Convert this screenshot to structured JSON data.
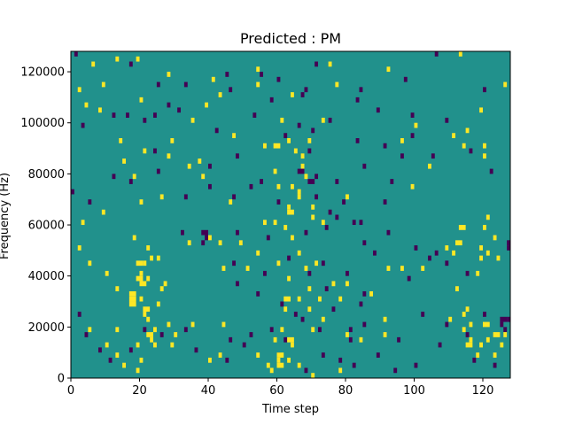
{
  "chart_data": {
    "type": "heatmap",
    "title": "Predicted : PM",
    "xlabel": "Time step",
    "ylabel": "Frequency (Hz)",
    "xlim": [
      0,
      128
    ],
    "ylim": [
      0,
      128000
    ],
    "x_ticks": [
      0,
      20,
      40,
      60,
      80,
      100,
      120
    ],
    "y_ticks": [
      0,
      20000,
      40000,
      60000,
      80000,
      100000,
      120000
    ],
    "y_tick_labels": [
      "0",
      "20000",
      "40000",
      "60000",
      "80000",
      "100000",
      "120000"
    ],
    "grid": false,
    "legend": "none",
    "value_levels": {
      "low": -1,
      "background": 0,
      "high": 1
    },
    "colors": {
      "low": "#440154",
      "background": "#21918c",
      "high": "#fde725"
    },
    "cells": {
      "low": [
        [
          1,
          126000
        ],
        [
          17,
          122000
        ],
        [
          71,
          122000
        ],
        [
          106,
          126000
        ],
        [
          45,
          118000
        ],
        [
          46,
          112000
        ],
        [
          58,
          108000
        ],
        [
          67,
          110000
        ],
        [
          16,
          102000
        ],
        [
          24,
          102000
        ],
        [
          28,
          106000
        ],
        [
          89,
          104000
        ],
        [
          83,
          108000
        ],
        [
          53,
          102000
        ],
        [
          42,
          96000
        ],
        [
          3,
          98000
        ],
        [
          75,
          100000
        ],
        [
          99,
          102000
        ],
        [
          109,
          100000
        ],
        [
          24,
          88000
        ],
        [
          48,
          86000
        ],
        [
          69,
          88000
        ],
        [
          91,
          90000
        ],
        [
          96,
          86000
        ],
        [
          116,
          88000
        ],
        [
          25,
          80000
        ],
        [
          40,
          82000
        ],
        [
          12,
          78000
        ],
        [
          17,
          76000
        ],
        [
          55,
          76000
        ],
        [
          71,
          78000
        ],
        [
          77,
          76000
        ],
        [
          85,
          82000
        ],
        [
          93,
          76000
        ],
        [
          105,
          86000
        ],
        [
          122,
          80000
        ],
        [
          40,
          74000
        ],
        [
          33,
          70000
        ],
        [
          47,
          70000
        ],
        [
          52,
          74000
        ],
        [
          60,
          68000
        ],
        [
          71,
          70000
        ],
        [
          79,
          68000
        ],
        [
          0,
          72000
        ],
        [
          5,
          68000
        ],
        [
          91,
          68000
        ],
        [
          32,
          56000
        ],
        [
          39,
          54000
        ],
        [
          48,
          56000
        ],
        [
          57,
          54000
        ],
        [
          68,
          56000
        ],
        [
          75,
          64000
        ],
        [
          77,
          62000
        ],
        [
          74,
          58000
        ],
        [
          82,
          60000
        ],
        [
          84,
          60000
        ],
        [
          85,
          52000
        ],
        [
          92,
          56000
        ],
        [
          100,
          50000
        ],
        [
          104,
          46000
        ],
        [
          127,
          50000
        ],
        [
          38,
          52000
        ],
        [
          47,
          44000
        ],
        [
          63,
          46000
        ],
        [
          73,
          44000
        ],
        [
          88,
          48000
        ],
        [
          106,
          48000
        ],
        [
          109,
          44000
        ],
        [
          115,
          40000
        ],
        [
          48,
          36000
        ],
        [
          54,
          32000
        ],
        [
          56,
          40000
        ],
        [
          69,
          40000
        ],
        [
          74,
          34000
        ],
        [
          80,
          40000
        ],
        [
          85,
          32000
        ],
        [
          84,
          28000
        ],
        [
          61,
          28000
        ],
        [
          65,
          24000
        ],
        [
          67,
          22000
        ],
        [
          76,
          26000
        ],
        [
          81,
          18000
        ],
        [
          85,
          20000
        ],
        [
          98,
          38000
        ],
        [
          102,
          24000
        ],
        [
          109,
          20000
        ],
        [
          120,
          24000
        ],
        [
          2,
          24000
        ],
        [
          4,
          16000
        ],
        [
          8,
          10000
        ],
        [
          11,
          6000
        ],
        [
          17,
          10000
        ],
        [
          21,
          18000
        ],
        [
          26,
          16000
        ],
        [
          33,
          18000
        ],
        [
          36,
          10000
        ],
        [
          46,
          14000
        ],
        [
          50,
          12000
        ],
        [
          58,
          18000
        ],
        [
          60,
          8000
        ],
        [
          62,
          14000
        ],
        [
          72,
          18000
        ],
        [
          73,
          8000
        ],
        [
          81,
          14000
        ],
        [
          89,
          8000
        ],
        [
          95,
          14000
        ],
        [
          100,
          4000
        ],
        [
          107,
          12000
        ],
        [
          115,
          16000
        ],
        [
          123,
          4000
        ],
        [
          125,
          20000
        ],
        [
          126,
          18000
        ],
        [
          127,
          22000
        ],
        [
          45,
          6000
        ],
        [
          52,
          16000
        ],
        [
          68,
          2000
        ],
        [
          78,
          6000
        ],
        [
          82,
          4000
        ],
        [
          94,
          2000
        ],
        [
          117,
          6000
        ],
        [
          12,
          102000
        ],
        [
          33,
          114000
        ],
        [
          55,
          118000
        ],
        [
          60,
          116000
        ],
        [
          68,
          112000
        ],
        [
          84,
          112000
        ],
        [
          97,
          116000
        ],
        [
          120,
          112000
        ],
        [
          25,
          114000
        ],
        [
          62,
          94000
        ],
        [
          99,
          94000
        ],
        [
          83,
          92000
        ],
        [
          66,
          98000
        ],
        [
          70,
          96000
        ],
        [
          21,
          100000
        ],
        [
          31,
          104000
        ]
      ],
      "high": [
        [
          13,
          124000
        ],
        [
          6,
          122000
        ],
        [
          19,
          124000
        ],
        [
          54,
          120000
        ],
        [
          75,
          122000
        ],
        [
          92,
          120000
        ],
        [
          113,
          126000
        ],
        [
          2,
          112000
        ],
        [
          9,
          114000
        ],
        [
          28,
          118000
        ],
        [
          41,
          116000
        ],
        [
          54,
          114000
        ],
        [
          64,
          110000
        ],
        [
          77,
          114000
        ],
        [
          4,
          106000
        ],
        [
          20,
          108000
        ],
        [
          39,
          106000
        ],
        [
          61,
          100000
        ],
        [
          73,
          100000
        ],
        [
          100,
          98000
        ],
        [
          115,
          96000
        ],
        [
          119,
          104000
        ],
        [
          126,
          114000
        ],
        [
          8,
          104000
        ],
        [
          14,
          92000
        ],
        [
          29,
          92000
        ],
        [
          37,
          84000
        ],
        [
          47,
          94000
        ],
        [
          56,
          90000
        ],
        [
          63,
          92000
        ],
        [
          65,
          88000
        ],
        [
          67,
          86000
        ],
        [
          67,
          82000
        ],
        [
          68,
          78000
        ],
        [
          69,
          92000
        ],
        [
          59,
          80000
        ],
        [
          60,
          74000
        ],
        [
          64,
          74000
        ],
        [
          66,
          72000
        ],
        [
          96,
          92000
        ],
        [
          114,
          90000
        ],
        [
          120,
          90000
        ],
        [
          111,
          94000
        ],
        [
          21,
          88000
        ],
        [
          15,
          84000
        ],
        [
          28,
          86000
        ],
        [
          38,
          78000
        ],
        [
          18,
          78000
        ],
        [
          34,
          82000
        ],
        [
          104,
          82000
        ],
        [
          120,
          86000
        ],
        [
          99,
          74000
        ],
        [
          20,
          68000
        ],
        [
          26,
          70000
        ],
        [
          46,
          68000
        ],
        [
          59,
          60000
        ],
        [
          62,
          58000
        ],
        [
          64,
          54000
        ],
        [
          70,
          62000
        ],
        [
          73,
          60000
        ],
        [
          3,
          60000
        ],
        [
          9,
          64000
        ],
        [
          18,
          54000
        ],
        [
          22,
          50000
        ],
        [
          25,
          46000
        ],
        [
          34,
          52000
        ],
        [
          40,
          54000
        ],
        [
          49,
          52000
        ],
        [
          54,
          48000
        ],
        [
          51,
          42000
        ],
        [
          60,
          44000
        ],
        [
          63,
          38000
        ],
        [
          66,
          48000
        ],
        [
          68,
          42000
        ],
        [
          71,
          44000
        ],
        [
          76,
          36000
        ],
        [
          78,
          30000
        ],
        [
          80,
          36000
        ],
        [
          92,
          42000
        ],
        [
          96,
          42000
        ],
        [
          102,
          42000
        ],
        [
          109,
          50000
        ],
        [
          111,
          48000
        ],
        [
          119,
          50000
        ],
        [
          119,
          46000
        ],
        [
          121,
          48000
        ],
        [
          118,
          40000
        ],
        [
          120,
          58000
        ],
        [
          121,
          62000
        ],
        [
          123,
          54000
        ],
        [
          124,
          46000
        ],
        [
          13,
          34000
        ],
        [
          10,
          40000
        ],
        [
          5,
          44000
        ],
        [
          2,
          50000
        ],
        [
          21,
          44000
        ],
        [
          22,
          38000
        ],
        [
          23,
          46000
        ],
        [
          26,
          34000
        ],
        [
          20,
          30000
        ],
        [
          21,
          24000
        ],
        [
          22,
          22000
        ],
        [
          27,
          36000
        ],
        [
          28,
          20000
        ],
        [
          30,
          16000
        ],
        [
          24,
          18000
        ],
        [
          24,
          12000
        ],
        [
          23,
          14000
        ],
        [
          25,
          28000
        ],
        [
          35,
          20000
        ],
        [
          44,
          20000
        ],
        [
          59,
          14000
        ],
        [
          61,
          18000
        ],
        [
          62,
          26000
        ],
        [
          63,
          6000
        ],
        [
          64,
          12000
        ],
        [
          66,
          30000
        ],
        [
          69,
          26000
        ],
        [
          70,
          18000
        ],
        [
          73,
          22000
        ],
        [
          80,
          16000
        ],
        [
          87,
          32000
        ],
        [
          91,
          22000
        ],
        [
          110,
          22000
        ],
        [
          114,
          24000
        ],
        [
          114,
          18000
        ],
        [
          116,
          14000
        ],
        [
          118,
          8000
        ],
        [
          119,
          12000
        ],
        [
          121,
          14000
        ],
        [
          123,
          8000
        ],
        [
          125,
          12000
        ],
        [
          126,
          16000
        ],
        [
          5,
          18000
        ],
        [
          13,
          8000
        ],
        [
          19,
          12000
        ],
        [
          20,
          6000
        ],
        [
          29,
          12000
        ],
        [
          15,
          4000
        ],
        [
          10,
          12000
        ],
        [
          40,
          6000
        ],
        [
          43,
          8000
        ],
        [
          54,
          8000
        ],
        [
          57,
          4000
        ],
        [
          60,
          6000
        ],
        [
          66,
          4000
        ],
        [
          70,
          0
        ],
        [
          84,
          14000
        ],
        [
          91,
          16000
        ],
        [
          19,
          2000
        ],
        [
          13,
          18000
        ],
        [
          58,
          2000
        ],
        [
          69,
          34000
        ],
        [
          72,
          30000
        ],
        [
          78,
          2000
        ],
        [
          112,
          34000
        ],
        [
          115,
          26000
        ],
        [
          116,
          20000
        ],
        [
          20,
          40000
        ],
        [
          43,
          52000
        ],
        [
          44,
          42000
        ],
        [
          56,
          60000
        ],
        [
          63,
          66000
        ],
        [
          66,
          70000
        ],
        [
          70,
          66000
        ],
        [
          80,
          70000
        ],
        [
          35,
          100000
        ],
        [
          43,
          110000
        ]
      ],
      "high_wide": [
        [
          60,
          4000,
          2
        ],
        [
          60,
          8000,
          2
        ],
        [
          62,
          30000,
          2
        ],
        [
          63,
          14000,
          2
        ],
        [
          17,
          28000,
          2
        ],
        [
          17,
          30000,
          2
        ],
        [
          17,
          32000,
          2
        ],
        [
          19,
          44000,
          2
        ],
        [
          19,
          38000,
          2
        ],
        [
          20,
          36000,
          2
        ],
        [
          21,
          26000,
          2
        ],
        [
          22,
          16000,
          2
        ],
        [
          59,
          90000,
          2
        ],
        [
          63,
          64000,
          2
        ],
        [
          112,
          52000,
          2
        ],
        [
          113,
          58000,
          2
        ],
        [
          115,
          12000,
          2
        ],
        [
          120,
          20000,
          2
        ],
        [
          123,
          16000,
          2
        ]
      ],
      "low_wide": [
        [
          125,
          22000,
          2
        ],
        [
          127,
          52000,
          1
        ],
        [
          38,
          56000,
          2
        ],
        [
          66,
          80000,
          2
        ],
        [
          69,
          76000,
          2
        ]
      ]
    }
  }
}
